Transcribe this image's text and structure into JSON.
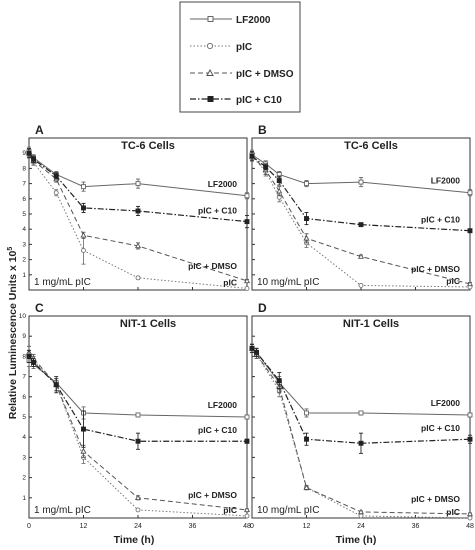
{
  "figure": {
    "ylabel": "Relative Luminescence Units x 10",
    "ylabel_exp": "5",
    "xlabel": "Time (h)",
    "xticks": [
      "0",
      "12",
      "24",
      "36",
      "48"
    ]
  },
  "legend": {
    "entries": [
      {
        "label": "LF2000",
        "marker": "square-open",
        "dash": "solid"
      },
      {
        "label": "pIC",
        "marker": "circle-open",
        "dash": "dotted"
      },
      {
        "label": "pIC + DMSO",
        "marker": "triangle-open",
        "dash": "dashed"
      },
      {
        "label": "pIC + C10",
        "marker": "square-filled",
        "dash": "dashdot"
      }
    ]
  },
  "chart_data": [
    {
      "type": "line",
      "panel": "A",
      "title": "TC-6 Cells",
      "note": "1 mg/mL  pIC",
      "ylim": [
        0,
        10
      ],
      "yticks": [
        "1",
        "2",
        "3",
        "4",
        "5",
        "6",
        "7",
        "8",
        "9"
      ],
      "xlim": [
        0,
        48
      ],
      "x": [
        0,
        1,
        6,
        12,
        24,
        48
      ],
      "series": [
        {
          "name": "LF2000",
          "label": "LF2000",
          "values": [
            9.1,
            8.7,
            7.6,
            6.8,
            7.0,
            6.2
          ],
          "errors": [
            0.3,
            0.2,
            0.2,
            0.3,
            0.3,
            0.2
          ]
        },
        {
          "name": "pIC",
          "label": "pIC",
          "values": [
            9.0,
            8.4,
            6.4,
            2.6,
            0.8,
            0.1
          ],
          "errors": [
            0.3,
            0.2,
            0.2,
            0.9,
            0.1,
            0.05
          ]
        },
        {
          "name": "pIC + DMSO",
          "label": "pIC + DMSO",
          "values": [
            9.0,
            8.5,
            7.3,
            3.6,
            2.9,
            0.6
          ],
          "errors": [
            0.3,
            0.2,
            0.2,
            0.2,
            0.2,
            0.1
          ]
        },
        {
          "name": "pIC + C10",
          "label": "pIC + C10",
          "values": [
            9.0,
            8.6,
            7.5,
            5.4,
            5.2,
            4.5
          ],
          "errors": [
            0.3,
            0.2,
            0.2,
            0.3,
            0.3,
            0.4
          ]
        }
      ]
    },
    {
      "type": "line",
      "panel": "B",
      "title": "TC-6 Cells",
      "note": "10 mg/mL  pIC",
      "ylim": [
        0,
        10
      ],
      "yticks": [],
      "xlim": [
        0,
        48
      ],
      "x": [
        0,
        3,
        6,
        12,
        24,
        48
      ],
      "series": [
        {
          "name": "LF2000",
          "label": "LF2000",
          "values": [
            8.9,
            8.3,
            7.6,
            7.0,
            7.1,
            6.4
          ],
          "errors": [
            0.3,
            0.2,
            0.2,
            0.2,
            0.3,
            0.2
          ]
        },
        {
          "name": "pIC",
          "label": "pIC",
          "values": [
            8.8,
            7.8,
            6.1,
            3.1,
            0.3,
            0.2
          ],
          "errors": [
            0.3,
            0.3,
            0.3,
            0.3,
            0.05,
            0.05
          ]
        },
        {
          "name": "pIC + DMSO",
          "label": "pIC + DMSO",
          "values": [
            8.8,
            7.9,
            6.5,
            3.4,
            2.2,
            0.4
          ],
          "errors": [
            0.3,
            0.3,
            0.3,
            0.3,
            0.1,
            0.1
          ]
        },
        {
          "name": "pIC + C10",
          "label": "pIC + C10",
          "values": [
            8.8,
            8.1,
            7.2,
            4.7,
            4.3,
            3.9
          ],
          "errors": [
            0.3,
            0.2,
            0.3,
            0.4,
            0.1,
            0.1
          ]
        }
      ]
    },
    {
      "type": "line",
      "panel": "C",
      "title": "NIT-1 Cells",
      "note": "1 mg/mL  pIC",
      "ylim": [
        0,
        10
      ],
      "yticks": [
        "1",
        "2",
        "3",
        "4",
        "5",
        "6",
        "7",
        "8",
        "9",
        "10"
      ],
      "xlim": [
        0,
        48
      ],
      "x": [
        0,
        1,
        6,
        12,
        24,
        48
      ],
      "series": [
        {
          "name": "LF2000",
          "label": "LF2000",
          "values": [
            7.8,
            7.6,
            6.7,
            5.2,
            5.1,
            5.0
          ],
          "errors": [
            0.3,
            0.2,
            0.2,
            0.3,
            0.1,
            0.1
          ]
        },
        {
          "name": "pIC",
          "label": "pIC",
          "values": [
            8.0,
            7.8,
            6.6,
            3.0,
            0.4,
            0.1
          ],
          "errors": [
            0.3,
            0.2,
            0.3,
            0.3,
            0.05,
            0.05
          ]
        },
        {
          "name": "pIC + DMSO",
          "label": "pIC + DMSO",
          "values": [
            8.2,
            7.9,
            6.6,
            3.3,
            1.0,
            0.4
          ],
          "errors": [
            0.3,
            0.2,
            0.3,
            0.3,
            0.1,
            0.05
          ]
        },
        {
          "name": "pIC + C10",
          "label": "pIC + C10",
          "values": [
            8.0,
            7.7,
            6.6,
            4.4,
            3.8,
            3.8
          ],
          "errors": [
            0.3,
            0.2,
            0.4,
            0.9,
            0.4,
            0.1
          ]
        }
      ]
    },
    {
      "type": "line",
      "panel": "D",
      "title": "NIT-1 Cells",
      "note": "10 mg/mL  pIC",
      "ylim": [
        0,
        10
      ],
      "yticks": [],
      "xlim": [
        0,
        48
      ],
      "x": [
        0,
        1,
        6,
        12,
        24,
        48
      ],
      "series": [
        {
          "name": "LF2000",
          "label": "LF2000",
          "values": [
            8.4,
            8.2,
            6.7,
            5.2,
            5.2,
            5.1
          ],
          "errors": [
            0.2,
            0.2,
            0.3,
            0.2,
            0.1,
            0.1
          ]
        },
        {
          "name": "pIC",
          "label": "pIC",
          "values": [
            8.4,
            8.1,
            6.3,
            1.5,
            0.1,
            0.0
          ],
          "errors": [
            0.2,
            0.2,
            0.3,
            0.1,
            0.05,
            0.05
          ]
        },
        {
          "name": "pIC + DMSO",
          "label": "pIC + DMSO",
          "values": [
            8.4,
            8.1,
            6.5,
            1.5,
            0.3,
            0.2
          ],
          "errors": [
            0.2,
            0.2,
            0.3,
            0.1,
            0.05,
            0.05
          ]
        },
        {
          "name": "pIC + C10",
          "label": "pIC + C10",
          "values": [
            8.4,
            8.2,
            6.8,
            3.9,
            3.7,
            3.9
          ],
          "errors": [
            0.2,
            0.2,
            0.4,
            0.3,
            0.5,
            0.2
          ]
        }
      ]
    }
  ]
}
